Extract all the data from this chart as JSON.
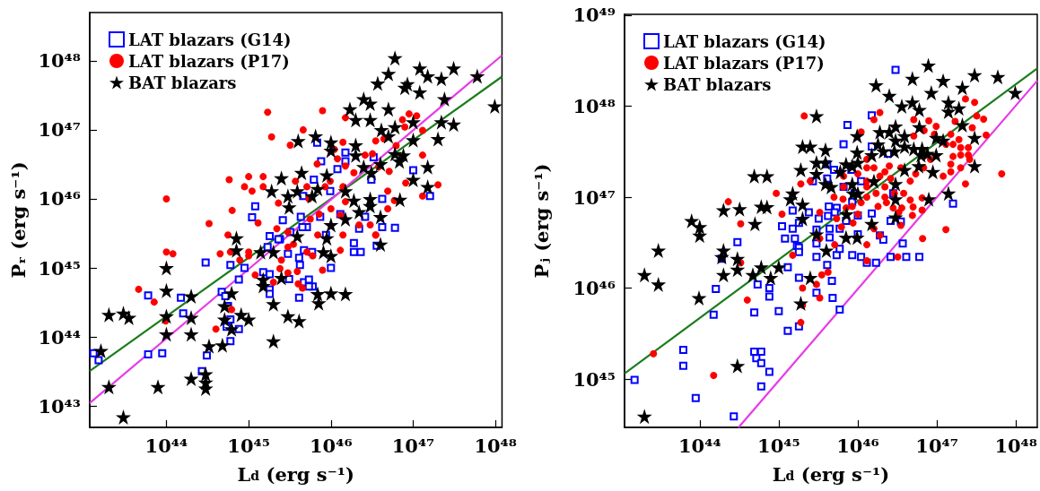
{
  "chart_data": [
    {
      "type": "scatter",
      "xlabel": "L$_{d}$ (erg s⁻¹)",
      "ylabel": "Pᵣ (erg s⁻¹)",
      "log": "xy",
      "legend": "top left",
      "xlim": [
        1.17e+43,
        1.2e+48
      ],
      "ylim": [
        4.9e+42,
        5e+48
      ],
      "xticks": [
        {
          "value": 1e+44,
          "label": "10⁴⁴"
        },
        {
          "value": 1e+45,
          "label": "10⁴⁵"
        },
        {
          "value": 1e+46,
          "label": "10⁴⁶"
        },
        {
          "value": 1e+47,
          "label": "10⁴⁷"
        },
        {
          "value": 1e+48,
          "label": "10⁴⁸"
        }
      ],
      "yticks": [
        {
          "value": 1e+43,
          "label": "10⁴³"
        },
        {
          "value": 1e+44,
          "label": "10⁴⁴"
        },
        {
          "value": 1e+45,
          "label": "10⁴⁵"
        },
        {
          "value": 1e+46,
          "label": "10⁴⁶"
        },
        {
          "value": 1e+47,
          "label": "10⁴⁷"
        },
        {
          "value": 1e+48,
          "label": "10⁴⁸"
        }
      ],
      "series": [
        {
          "type": "line",
          "color": "#1b7d1b",
          "x": [
            1.17e+43,
            1.2e+48
          ],
          "values": [
            3.2e+43,
            5.9e+47
          ]
        },
        {
          "type": "line",
          "color": "#e63ce6",
          "x": [
            1.17e+43,
            1.2e+48
          ],
          "values": [
            1.1e+43,
            1.2e+48
          ]
        },
        {
          "name": "LAT blazars (G14)",
          "marker": "square",
          "color": "#0000ff",
          "x": [
            6.8e+45,
            1.5e+46,
            1.5e+46,
            7.6e+45,
            1.2e+46,
            3.3e+46,
            6.2e+45,
            1e+47,
            1.6e+47,
            4.2e+46,
            4.6e+45,
            9.8e+45,
            1.2e+45,
            1.1e+45,
            2.6e+45,
            4.3e+45,
            5.1e+45,
            7.4e+45,
            1.3e+46,
            2.6e+46,
            2.2e+46,
            4.2e+46,
            6e+46,
            2.4e+45,
            3.2e+45,
            4.5e+45,
            1.8e+45,
            8.7e+45,
            1.9e+46,
            3.1e+46,
            1.7e+45,
            2.3e+45,
            3e+45,
            4.1e+45,
            4.7e+45,
            5.9e+45,
            1e+46,
            1.9e+46,
            2.3e+46,
            3e+44,
            6e+44,
            8.9e+44,
            7.6e+44,
            1.5e+45,
            1.8e+45,
            1.8e+45,
            1.8e+45,
            3.1e+45,
            4.7e+45,
            5.4e+45,
            6e+45,
            5.4e+45,
            4.1e+45,
            4.2e+45,
            4.7e+44,
            5.2e+44,
            5.6e+44,
            6e+44,
            7.6e+44,
            6e+44,
            5.4e+44,
            1.5e+44,
            1.6e+44,
            6e+43,
            6e+43,
            8.9e+43,
            1.5e+43,
            1.3e+43,
            3.1e+44,
            2.7e+44,
            3.6e+46
          ],
          "values": [
            6.5e+46,
            4.7e+46,
            3.5e+46,
            3.5e+46,
            2.7e+46,
            4e+46,
            1.9e+46,
            2.6e+46,
            1.1e+46,
            1e+46,
            1.1e+46,
            1.3e+46,
            7.8e+45,
            5.4e+45,
            4.9e+45,
            5.5e+45,
            3.9e+45,
            5.5e+45,
            6e+45,
            5.5e+45,
            3.7e+45,
            3.9e+45,
            3.8e+45,
            2.6e+45,
            3.3e+45,
            3.9e+45,
            2.9e+45,
            3e+45,
            2.3e+45,
            1.9e+46,
            2e+45,
            2.6e+45,
            1.6e+45,
            1.4e+45,
            1.8e+45,
            1.7e+45,
            1e+45,
            1.7e+45,
            1.7e+45,
            1.2e+45,
            1.1e+45,
            1e+45,
            6.8e+44,
            8.7e+44,
            8.1e+44,
            4.9e+44,
            4.2e+44,
            6.9e+44,
            6.2e+44,
            6.8e+44,
            5.4e+44,
            5.4e+44,
            3.7e+44,
            1.1e+45,
            4.5e+44,
            3.9e+44,
            2.8e+44,
            1.8e+44,
            1.3e+44,
            8.7e+43,
            1.4e+44,
            3.7e+44,
            2.2e+44,
            4e+44,
            5.6e+43,
            5.8e+43,
            4.6e+43,
            5.8e+43,
            5.4e+43,
            3.2e+43,
            2.1e+45
          ]
        },
        {
          "name": "LAT blazars (P17)",
          "marker": "circle",
          "color": "#ff0000",
          "x": [
            1.7e+45,
            7.9e+45,
            1.5e+46,
            1.9e+45,
            4.6e+45,
            3.2e+45,
            7.4e+46,
            8.9e+46,
            1.1e+47,
            7.9e+46,
            1.3e+47,
            4.4e+46,
            3.5e+46,
            1.4e+46,
            1.1e+46,
            6.8e+45,
            1.2e+46,
            1.5e+46,
            2.6e+46,
            3.2e+46,
            1.9e+46,
            3.8e+46,
            5.1e+46,
            6.2e+46,
            1.3e+47,
            1.3e+47,
            2e+47,
            8.1e+46,
            4.9e+46,
            5.9e+46,
            4.9e+46,
            5.8e+44,
            1e+45,
            8.9e+44,
            1.1e+45,
            1.5e+45,
            1.5e+45,
            2.3e+45,
            3.7e+45,
            5.1e+45,
            5.4e+45,
            8.5e+45,
            9.8e+45,
            1.4e+46,
            1.5e+46,
            1e+46,
            7.2e+45,
            5.6e+45,
            6.9e+45,
            6.3e+44,
            1.3e+45,
            3.3e+44,
            2.2e+45,
            3e+45,
            3.5e+45,
            1.3e+46,
            2.2e+46,
            3e+46,
            3.5e+46,
            1.4e+46,
            1e+44,
            5.6e+44,
            4.5e+44,
            6e+44,
            1e+44,
            1.2e+44,
            1e+45,
            1e+45,
            7.8e+44,
            1.2e+45,
            2e+45,
            2.5e+45,
            2.4e+45,
            3e+45,
            3.9e+45,
            4e+45,
            4.5e+45,
            5.1e+45,
            6e+45,
            7.9e+45,
            3e+45,
            1.3e+46,
            3.5e+46,
            4.6e+43,
            7.1e+43,
            9.8e+43,
            6.2e+44,
            4e+44
          ],
          "values": [
            1.8e+47,
            1.9e+47,
            1.5e+47,
            7.9e+46,
            1e+47,
            6e+46,
            1.4e+47,
            1.7e+47,
            1.6e+47,
            1.1e+47,
            9.8e+46,
            7.4e+46,
            6.9e+46,
            6.6e+46,
            5.2e+46,
            3.2e+46,
            3.8e+46,
            3e+46,
            4.3e+46,
            4.5e+46,
            2.4e+46,
            2.9e+46,
            2.5e+46,
            5.9e+46,
            4.3e+46,
            1.1e+46,
            1.6e+46,
            1.7e+46,
            1.3e+46,
            9.5e+45,
            7.2e+45,
            1.9e+46,
            2.1e+46,
            1.5e+46,
            1.3e+46,
            2.1e+46,
            1.5e+46,
            8.7e+45,
            1.8e+46,
            1.5e+46,
            1e+46,
            1.5e+46,
            1.8e+46,
            1.5e+46,
            9.1e+45,
            7.2e+45,
            6e+45,
            5.1e+45,
            3e+45,
            6.8e+45,
            4.5e+45,
            4.4e+45,
            3.7e+45,
            3.3e+45,
            2.2e+45,
            5.8e+45,
            4.2e+45,
            4.2e+45,
            3e+45,
            3e+45,
            1e+46,
            3e+45,
            1.6e+45,
            1.7e+45,
            1.7e+45,
            1.6e+45,
            1.7e+45,
            1.5e+45,
            1.3e+45,
            7.9e+44,
            6.2e+44,
            1.3e+45,
            9.8e+44,
            8.5e+44,
            8.9e+44,
            5.9e+44,
            5.1e+44,
            1.7e+45,
            1.5e+45,
            9.3e+44,
            2e+45,
            1.8e+45,
            3e+45,
            4.9e+44,
            3.2e+44,
            1.7e+44,
            2.5e+44,
            1.3e+44
          ]
        },
        {
          "name": "BAT blazars",
          "marker": "star",
          "color": "#000000",
          "x": [
            6e+46,
            5e+46,
            3.7e+46,
            1.2e+47,
            1.5e+47,
            8.5e+46,
            7.9e+46,
            1.2e+47,
            2.2e+47,
            3.1e+47,
            6e+47,
            9.8e+47,
            2.5e+46,
            3e+46,
            1.7e+46,
            2e+46,
            3e+46,
            5e+46,
            2.4e+47,
            4.1e+46,
            6e+46,
            5e+46,
            1e+47,
            1e+47,
            2.2e+47,
            3.1e+47,
            2e+47,
            4e+45,
            6.5e+45,
            1e+46,
            1e+46,
            2e+46,
            2e+46,
            6e+46,
            7.6e+46,
            6.8e+46,
            2.5e+46,
            4e+46,
            3.1e+46,
            1.5e+47,
            1e+47,
            1.5e+47,
            6.9e+46,
            2.5e+45,
            4.4e+45,
            8.9e+45,
            1.9e+45,
            3e+45,
            3.9e+45,
            5.9e+45,
            6.9e+45,
            3.1e+45,
            1.5e+46,
            1.9e+46,
            3e+46,
            3e+46,
            2.2e+46,
            1.5e+46,
            4e+46,
            1e+46,
            3.9e+45,
            8.9e+45,
            4e+46,
            7.1e+44,
            7.1e+44,
            1.4e+45,
            2e+45,
            8.1e+45,
            1e+46,
            1e+44,
            1.5e+45,
            1.5e+45,
            2.5e+45,
            1e+44,
            2e+44,
            6.2e+44,
            6.9e+45,
            1e+46,
            1.5e+46,
            7.1e+45,
            2e+45,
            2e+43,
            3e+43,
            3.5e+43,
            1e+44,
            2e+44,
            5.1e+44,
            5.1e+44,
            6.2e+44,
            8.1e+44,
            1e+45,
            3e+45,
            4.1e+45,
            1e+44,
            2e+44,
            1.6e+43,
            3.3e+44,
            4.8e+44,
            2e+45,
            2e+43,
            7.9e+43,
            2e+44,
            3e+44,
            3e+44,
            3e+44,
            3e+43
          ],
          "values": [
            1.1e+48,
            6.5e+47,
            4.7e+47,
            7.8e+47,
            6e+47,
            4.6e+47,
            4.1e+47,
            3.5e+47,
            5.5e+47,
            7.8e+47,
            6e+47,
            2.2e+47,
            2.8e+47,
            2.4e+47,
            2e+47,
            1.4e+47,
            1.4e+47,
            2e+47,
            2.8e+47,
            1e+47,
            1.1e+47,
            8.1e+46,
            1.3e+47,
            7.1e+46,
            1.3e+47,
            1.2e+47,
            7.4e+46,
            6.9e+46,
            8.1e+46,
            6.6e+46,
            5e+46,
            6e+46,
            4.3e+46,
            4.5e+46,
            4.3e+46,
            3.5e+46,
            2.9e+46,
            3.2e+46,
            2.4e+46,
            2.9e+46,
            1.9e+46,
            1.5e+46,
            9.8e+45,
            2e+46,
            2.4e+46,
            2.2e+46,
            1.3e+46,
            1.1e+46,
            1.3e+46,
            1.1e+46,
            1.4e+46,
            7.6e+45,
            1.3e+46,
            9.5e+45,
            1e+46,
            7.9e+45,
            6.5e+45,
            5.1e+45,
            5.5e+45,
            4.2e+45,
            2.9e+45,
            2.7e+45,
            2.2e+45,
            2.7e+45,
            1.8e+45,
            1.7e+45,
            1.7e+45,
            1.7e+45,
            1.5e+45,
            1e+45,
            6.8e+44,
            5.5e+44,
            7.2e+44,
            4.7e+44,
            3.9e+44,
            4.3e+44,
            4.2e+44,
            4.3e+44,
            4.2e+44,
            3.1e+44,
            3e+44,
            2.1e+44,
            2.2e+44,
            1.9e+44,
            2e+44,
            1.9e+44,
            2.8e+44,
            1.8e+44,
            1.3e+44,
            2.1e+44,
            1.8e+44,
            2e+44,
            1.7e+44,
            1.1e+44,
            1.1e+44,
            6.3e+43,
            7.4e+43,
            7.6e+43,
            8.7e+43,
            1.9e+43,
            1.9e+43,
            2.5e+43,
            2.9e+43,
            2.2e+43,
            1.8e+43,
            6.9e+42
          ]
        }
      ]
    },
    {
      "type": "scatter",
      "xlabel": "L$_{d}$ (erg s⁻¹)",
      "ylabel": "Pⱼ (erg s⁻¹)",
      "log": "xy",
      "legend": "top left",
      "xlim": [
        1.12e+43,
        1.86e+48
      ],
      "ylim": [
        2.95e+44,
        1.02e+49
      ],
      "xticks": [
        {
          "value": 1e+44,
          "label": "10⁴⁴"
        },
        {
          "value": 1e+45,
          "label": "10⁴⁵"
        },
        {
          "value": 1e+46,
          "label": "10⁴⁶"
        },
        {
          "value": 1e+47,
          "label": "10⁴⁷"
        },
        {
          "value": 1e+48,
          "label": "10⁴⁸"
        }
      ],
      "yticks": [
        {
          "value": 1e+45,
          "label": "10⁴⁵"
        },
        {
          "value": 1e+46,
          "label": "10⁴⁶"
        },
        {
          "value": 1e+47,
          "label": "10⁴⁷"
        },
        {
          "value": 1e+48,
          "label": "10⁴⁸"
        },
        {
          "value": 1e+49,
          "label": "10⁴⁹"
        }
      ],
      "series": [
        {
          "type": "line",
          "color": "#1b7d1b",
          "x": [
            1.12e+43,
            1.86e+48
          ],
          "values": [
            1.15e+45,
            2.6e+48
          ]
        },
        {
          "type": "line",
          "color": "#e63ce6",
          "x": [
            3.1e+44,
            1.86e+48
          ],
          "values": [
            2.95e+44,
            1.9e+48
          ]
        },
        {
          "name": "LAT blazars (G14)",
          "marker": "square",
          "color": "#0000ff",
          "x": [
            3e+46,
            1.5e+46,
            7.4e+45,
            6.6e+45,
            1.5e+46,
            2.4e+46,
            4.1e+45,
            5e+45,
            4.1e+45,
            6.6e+45,
            8.5e+45,
            9.1e+45,
            8.3e+45,
            1.1e+46,
            2.8e+46,
            1.6e+47,
            2.7e+45,
            4.3e+45,
            5.4e+45,
            5.1e+45,
            4.2e+45,
            3.2e+45,
            2.4e+45,
            1.5e+45,
            1.8e+45,
            1.5e+45,
            1.1e+45,
            1.2e+45,
            1.6e+45,
            3e+45,
            4.4e+45,
            7.1e+45,
            5.9e+45,
            1e+46,
            1.5e+46,
            2.6e+46,
            3.5e+46,
            1.9e+46,
            1e+46,
            3.7e+46,
            1.7e+45,
            3e+44,
            1.8e+45,
            1.8e+45,
            1.9e+44,
            3e+45,
            3e+45,
            4.4e+45,
            5.4e+45,
            5.9e+45,
            8.5e+45,
            1.1e+46,
            1.3e+46,
            1.7e+46,
            2.6e+46,
            2.1e+46,
            4.1e+46,
            6e+46,
            1.3e+45,
            1.8e+45,
            4.1e+45,
            4.7e+45,
            4.8e+45,
            3e+45,
            7.6e+44,
            7.6e+44,
            5.4e+44,
            1e+45,
            4.9e+44,
            5.9e+45,
            1.3e+45,
            1.8e+45,
            1.6e+44,
            1.5e+44,
            6.2e+43,
            6.2e+43,
            4.9e+44,
            6e+44,
            5.2e+44,
            6e+44,
            7.6e+44,
            6e+44,
            8.9e+43,
            2.7e+44,
            1.5e+43
          ],
          "values": [
            2.5e+48,
            7.9e+47,
            6.2e+47,
            3.8e+47,
            3.6e+47,
            3e+47,
            2.3e+47,
            2e+47,
            1.6e+47,
            1.3e+47,
            8.9e+46,
            1.1e+47,
            2e+47,
            1.5e+47,
            1.1e+47,
            8.5e+46,
            1.5e+47,
            7.9e+46,
            7.6e+46,
            6.8e+46,
            6.2e+46,
            5.8e+46,
            6.8e+46,
            7.1e+46,
            5.2e+46,
            4.5e+46,
            4.8e+46,
            3.5e+46,
            3.5e+46,
            4.4e+46,
            4.5e+46,
            5.5e+46,
            4.5e+46,
            6.3e+46,
            6.6e+46,
            5.5e+46,
            5.4e+46,
            3.8e+46,
            3.9e+46,
            3.1e+46,
            2.9e+46,
            3.2e+46,
            2.8e+46,
            2.5e+46,
            2.1e+46,
            3.1e+46,
            2.2e+46,
            3.6e+46,
            2.3e+46,
            2.7e+46,
            2.3e+46,
            2.2e+46,
            1.9e+46,
            1.9e+46,
            2.2e+46,
            3.4e+46,
            2.2e+46,
            2.2e+46,
            1.7e+46,
            1.3e+46,
            1.8e+46,
            1.2e+46,
            7.8e+45,
            8.9e+45,
            1e+46,
            8.1e+45,
            1.1e+46,
            5.6e+45,
            5.4e+45,
            5.8e+45,
            3.4e+45,
            3.8e+45,
            9.8e+45,
            5.1e+45,
            2.1e+45,
            1.4e+45,
            2e+45,
            2e+45,
            1.7e+45,
            1.5e+45,
            1.2e+45,
            8.3e+44,
            6.2e+44,
            3.9e+44,
            9.8e+44
          ]
        },
        {
          "name": "LAT blazars (P17)",
          "marker": "circle",
          "color": "#ff0000",
          "x": [
            2.3e+47,
            3e+47,
            2.1e+45,
            1.9e+46,
            1.6e+46,
            1.1e+46,
            5.1e+46,
            7.9e+46,
            9.8e+46,
            1.7e+47,
            3.2e+47,
            3.9e+47,
            2.8e+47,
            4.2e+47,
            6.9e+46,
            5.1e+46,
            9.3e+46,
            1.5e+47,
            1.3e+47,
            1.9e+47,
            1.6e+47,
            2e+47,
            2.5e+47,
            2.5e+47,
            2e+47,
            1.6e+47,
            2.6e+47,
            1.5e+47,
            2e+47,
            1.5e+47,
            2.3e+47,
            6.6e+47,
            1.2e+47,
            8.3e+46,
            6.8e+46,
            5.4e+46,
            4.6e+46,
            3.5e+46,
            2.5e+46,
            2.2e+46,
            2.6e+46,
            1.9e+46,
            1.3e+46,
            1.3e+46,
            1.6e+46,
            1e+46,
            1.3e+46,
            2.2e+46,
            2.9e+46,
            2.2e+46,
            1.7e+46,
            1.3e+46,
            1.3e+46,
            3.8e+46,
            4.6e+46,
            6.5e+46,
            5e+46,
            4.9e+46,
            6.5e+46,
            3.3e+46,
            3.6e+46,
            2.8e+46,
            2.3e+46,
            1.8e+46,
            1.1e+46,
            8.5e+45,
            1e+46,
            6.6e+45,
            6.6e+45,
            6.5e+45,
            7.1e+45,
            5e+45,
            3.3e+45,
            1.1e+45,
            1.9e+45,
            2.5e+45,
            9.3e+44,
            2.3e+44,
            3.3e+44,
            5.4e+45,
            6.2e+45,
            8.7e+45,
            1.6e+46,
            1.9e+46,
            3.5e+46,
            1.3e+47,
            6.6e+46,
            1.3e+46,
            5.1e+45,
            3.3e+45,
            3.2e+46,
            1.3e+46,
            1.5e+45,
            3.3e+44,
            4.2e+45,
            3.5e+45,
            3e+45,
            2e+45,
            3.3e+45,
            2e+45,
            1.9e+45,
            4e+44,
            2.6e+43,
            1.5e+44
          ],
          "values": [
            1.2e+48,
            1.1e+48,
            7.8e+47,
            8.5e+47,
            7.1e+47,
            5.2e+47,
            7.1e+47,
            6.9e+47,
            6e+47,
            6.8e+47,
            7.8e+47,
            7.2e+47,
            5.8e+47,
            4.8e+47,
            5.4e+47,
            4.7e+47,
            4.9e+47,
            4.9e+47,
            3.8e+47,
            4.3e+47,
            3.8e+47,
            3.5e+47,
            3.5e+47,
            2.9e+47,
            2.9e+47,
            2.8e+47,
            2.6e+47,
            2.3e+47,
            2.1e+47,
            1.9e+47,
            1.4e+47,
            1.8e+47,
            1.7e+47,
            2.6e+47,
            2.1e+47,
            1.8e+47,
            1.5e+47,
            2.1e+47,
            2.2e+47,
            1.9e+47,
            1.6e+47,
            1.7e+47,
            2.1e+47,
            1.5e+47,
            2.1e+47,
            1.8e+47,
            2.6e+47,
            1.3e+47,
            1.1e+47,
            1e+47,
            1.1e+47,
            1e+47,
            1.3e+47,
            1.1e+47,
            9.3e+46,
            9.8e+46,
            7.8e+46,
            6.3e+46,
            7.2e+46,
            6.8e+46,
            7.6e+46,
            7.6e+46,
            8.7e+46,
            7.9e+46,
            8.7e+46,
            7.9e+46,
            6.5e+46,
            1.7e+47,
            1.3e+47,
            9.5e+46,
            7.6e+46,
            1e+47,
            6.8e+46,
            6.5e+46,
            1.4e+47,
            1.5e+47,
            1.1e+47,
            8.9e+46,
            5.1e+46,
            5.8e+46,
            4.7e+46,
            5.2e+46,
            4.5e+46,
            3.8e+46,
            4.9e+46,
            4.4e+46,
            3.5e+46,
            3e+46,
            3e+46,
            3.5e+46,
            2.2e+46,
            2e+46,
            2.3e+46,
            1.9e+46,
            1.5e+46,
            1.4e+46,
            1.1e+46,
            1e+46,
            7.8e+45,
            6.5e+45,
            4.2e+45,
            7.4e+45,
            1.9e+45,
            1.1e+45
          ]
        },
        {
          "name": "BAT blazars",
          "marker": "star",
          "color": "#000000",
          "x": [
            7.8e+46,
            4.9e+46,
            1.2e+47,
            1.7e+46,
            2.5e+46,
            8.5e+46,
            2.1e+47,
            3e+47,
            5.9e+47,
            9.8e+47,
            3.6e+46,
            4.9e+46,
            6e+46,
            1.4e+47,
            1.4e+47,
            1.9e+47,
            2.1e+47,
            3e+45,
            3e+46,
            2.5e+46,
            1.9e+46,
            9.8e+45,
            6e+46,
            3.9e+46,
            3e+46,
            9.8e+46,
            1.2e+47,
            3e+47,
            1.8e+46,
            2.1e+46,
            2.9e+46,
            3.9e+46,
            5.1e+46,
            6.5e+46,
            7.6e+46,
            6.3e+46,
            9.8e+46,
            1.5e+46,
            9.8e+45,
            3.9e+45,
            2e+45,
            2.5e+45,
            3e+45,
            3.9e+45,
            1.9e+45,
            3e+45,
            6e+45,
            7.1e+45,
            8.5e+45,
            1e+46,
            3.9e+46,
            5.9e+46,
            8.9e+46,
            3e+47,
            1.6e+46,
            3e+46,
            3.9e+45,
            4.6e+45,
            8.5e+45,
            8.7e+45,
            1e+46,
            3e+46,
            7.9e+46,
            1.4e+47,
            1.5e+45,
            1.4e+45,
            2e+45,
            7.2e+45,
            1.5e+46,
            3e+46,
            2e+45,
            4.9e+44,
            7.1e+44,
            2e+44,
            3.2e+44,
            6e+44,
            7.1e+44,
            5e+44,
            7.9e+43,
            1e+44,
            1e+44,
            2e+44,
            3e+43,
            3e+45,
            4e+45,
            7.1e+45,
            9.8e+45,
            1.9e+44,
            3e+44,
            3e+44,
            2e+43,
            3e+43,
            2e+44,
            4.7e+44,
            6e+44,
            7.9e+44,
            1e+45,
            2.5e+45,
            9.8e+43,
            1.9e+45,
            3e+44,
            2e+43
          ],
          "values": [
            2.8e+48,
            2e+48,
            1.9e+48,
            1.7e+48,
            1.3e+48,
            1.4e+48,
            1.6e+48,
            2.2e+48,
            2.1e+48,
            1.4e+48,
            1e+48,
            1.1e+48,
            9.1e+47,
            1.1e+48,
            8.7e+47,
            9.5e+47,
            6.2e+47,
            7.8e+47,
            6e+47,
            5.2e+47,
            5.2e+47,
            4.7e+47,
            5.9e+47,
            4.7e+47,
            4.2e+47,
            4.5e+47,
            4.2e+47,
            4.5e+47,
            3.8e+47,
            3.2e+47,
            3.2e+47,
            3.6e+47,
            3.4e+47,
            3.4e+47,
            3e+47,
            2.9e+47,
            2.9e+47,
            2.9e+47,
            3.1e+47,
            3.3e+47,
            3.6e+47,
            3.6e+47,
            2.4e+47,
            2.4e+47,
            2e+47,
            1.8e+47,
            1.9e+47,
            2.3e+47,
            2.2e+47,
            2.4e+47,
            2e+47,
            2.2e+47,
            1.9e+47,
            2.2e+47,
            1.5e+47,
            1.4e+47,
            1.4e+47,
            1.3e+47,
            1.4e+47,
            1.1e+47,
            1.1e+47,
            9.5e+46,
            9.5e+46,
            1.1e+47,
            1.1e+47,
            9.5e+46,
            8.3e+46,
            6.5e+46,
            5.1e+46,
            6e+46,
            5.8e+46,
            1.7e+47,
            1.7e+47,
            7.2e+46,
            7.4e+46,
            7.9e+46,
            7.8e+46,
            5.1e+46,
            5.5e+46,
            4.7e+46,
            3.8e+46,
            2.6e+46,
            2.6e+46,
            3.9e+46,
            2.6e+46,
            3.6e+46,
            3.6e+46,
            2.2e+46,
            2.1e+46,
            1.6e+46,
            1.4e+46,
            1.1e+46,
            1.4e+46,
            1.4e+46,
            1.7e+46,
            1.3e+46,
            1.7e+46,
            1.3e+46,
            7.8e+45,
            6.8e+45,
            1.4e+45,
            3.9e+44
          ]
        }
      ]
    }
  ]
}
